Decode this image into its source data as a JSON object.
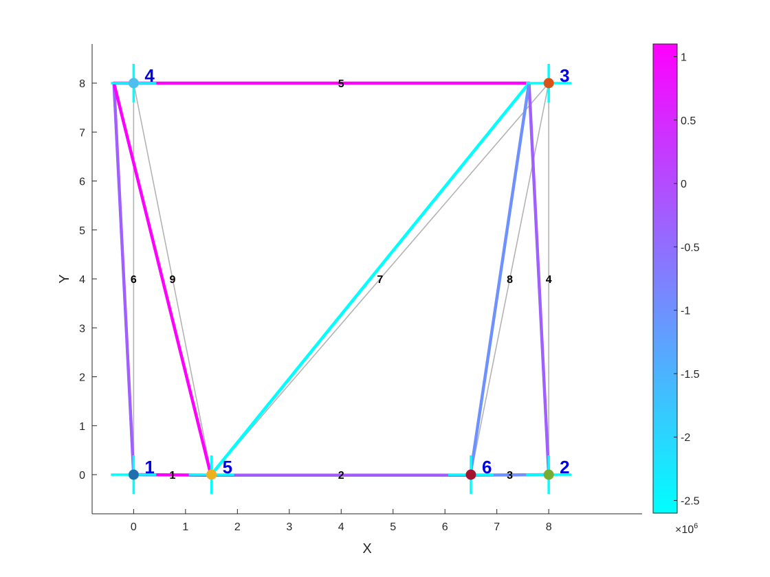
{
  "chart_data": {
    "type": "truss",
    "xlabel": "X",
    "ylabel": "Y",
    "xlim": [
      -0.8,
      9.8
    ],
    "ylim": [
      -0.8,
      8.8
    ],
    "x_ticks": [
      0,
      1,
      2,
      3,
      4,
      5,
      6,
      7,
      8
    ],
    "y_ticks": [
      0,
      1,
      2,
      3,
      4,
      5,
      6,
      7,
      8
    ],
    "grid": false,
    "nodes": [
      {
        "id": "1",
        "x": 0,
        "y": 0,
        "dx": 0,
        "dy": 0,
        "color": "#1f6fb0"
      },
      {
        "id": "2",
        "x": 8,
        "y": 0,
        "dx": 0,
        "dy": 0,
        "color": "#77ac30"
      },
      {
        "id": "3",
        "x": 8,
        "y": 8,
        "dx": -0.38,
        "dy": 0,
        "color": "#d95319"
      },
      {
        "id": "4",
        "x": 0,
        "y": 8,
        "dx": -0.38,
        "dy": 0,
        "color": "#4dbeee"
      },
      {
        "id": "5",
        "x": 1.5,
        "y": 0,
        "dx": -0.01,
        "dy": -0.01,
        "color": "#edb120"
      },
      {
        "id": "6",
        "x": 6.5,
        "y": 0,
        "dx": -0.01,
        "dy": -0.01,
        "color": "#a2142f"
      }
    ],
    "elements": [
      {
        "id": "1",
        "from": "1",
        "to": "5",
        "value": 1100000
      },
      {
        "id": "2",
        "from": "5",
        "to": "6",
        "value": -200000
      },
      {
        "id": "3",
        "from": "6",
        "to": "2",
        "value": -1000000
      },
      {
        "id": "4",
        "from": "2",
        "to": "3",
        "value": -300000
      },
      {
        "id": "5",
        "from": "3",
        "to": "4",
        "value": 1100000
      },
      {
        "id": "6",
        "from": "1",
        "to": "4",
        "value": -300000
      },
      {
        "id": "7",
        "from": "5",
        "to": "3",
        "value": -2600000
      },
      {
        "id": "8",
        "from": "6",
        "to": "3",
        "value": -1000000
      },
      {
        "id": "9",
        "from": "4",
        "to": "5",
        "value": 1100000
      }
    ],
    "colorbar": {
      "min": -2.6,
      "max": 1.1,
      "ticks": [
        "1",
        "0.5",
        "0",
        "-0.5",
        "-1",
        "-1.5",
        "-2",
        "-2.5"
      ],
      "tick_values": [
        1,
        0.5,
        0,
        -0.5,
        -1,
        -1.5,
        -2,
        -2.5
      ],
      "exponent_base": "×10",
      "exponent_power": "6",
      "colormap": "cool",
      "color_low": "#00ffff",
      "color_high": "#ff00ff"
    }
  }
}
